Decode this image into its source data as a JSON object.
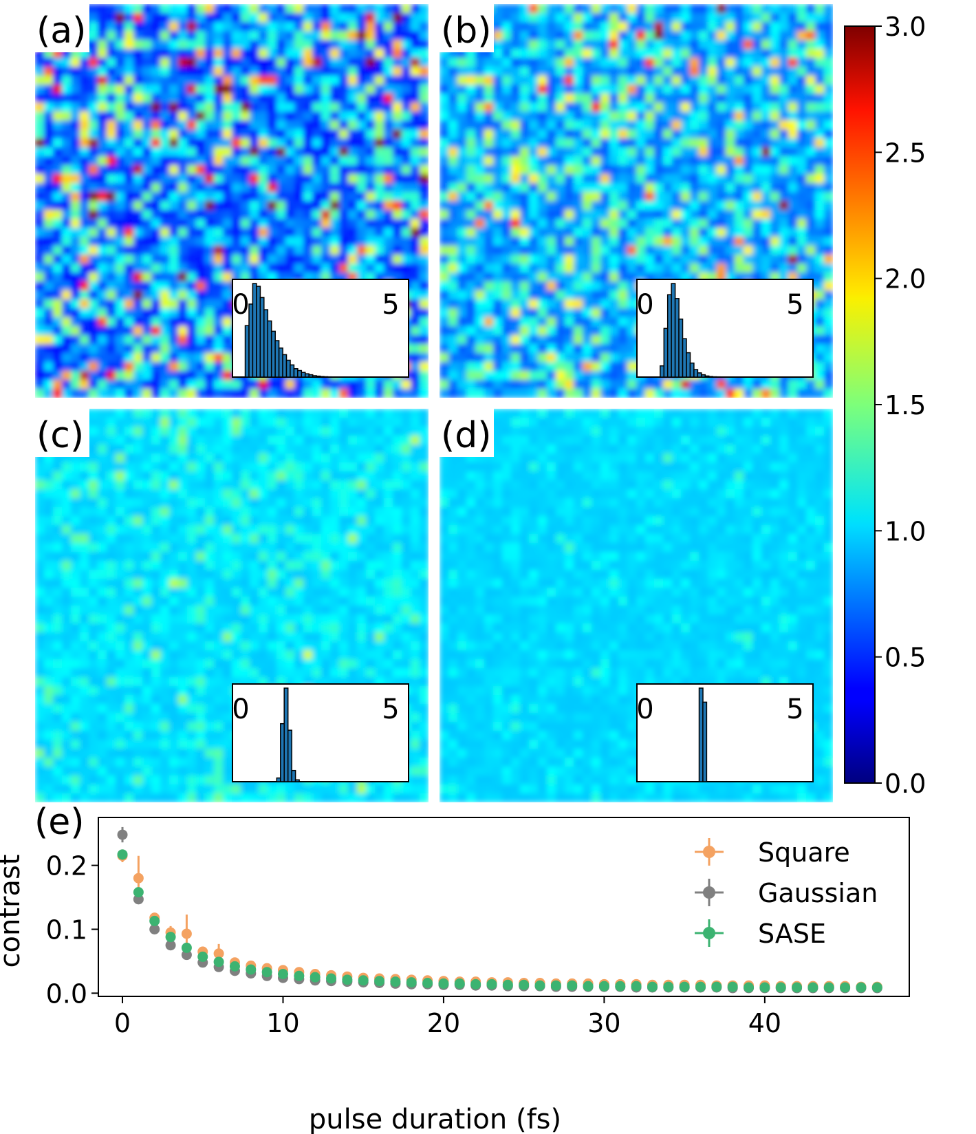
{
  "colors": {
    "square": "#f4a261",
    "gaussian": "#808080",
    "sase": "#3cb371",
    "hist_bar": "#1f77b4"
  },
  "colorbar": {
    "min": 0.0,
    "max": 3.0,
    "colormap": "jet",
    "ticks": [
      "0.0",
      "0.5",
      "1.0",
      "1.5",
      "2.0",
      "2.5",
      "3.0"
    ]
  },
  "panels": [
    {
      "label": "(a)",
      "inset_ticks": [
        "0",
        "5"
      ],
      "contrast_level": "high",
      "histogram": [
        0.55,
        0.78,
        1.0,
        0.97,
        0.85,
        0.72,
        0.6,
        0.49,
        0.39,
        0.31,
        0.24,
        0.18,
        0.13,
        0.09,
        0.07,
        0.05,
        0.035,
        0.025,
        0.015,
        0.01,
        0.006,
        0.004,
        0.002,
        0.001
      ]
    },
    {
      "label": "(b)",
      "inset_ticks": [
        "0",
        "5"
      ],
      "contrast_level": "medium",
      "histogram": [
        0.12,
        0.52,
        0.88,
        1.0,
        0.84,
        0.62,
        0.41,
        0.26,
        0.15,
        0.08,
        0.045,
        0.025,
        0.012,
        0.006,
        0.003,
        0.002,
        0.001
      ]
    },
    {
      "label": "(c)",
      "inset_ticks": [
        "0",
        "5"
      ],
      "contrast_level": "low",
      "histogram": [
        0.04,
        0.62,
        1.0,
        0.55,
        0.12,
        0.02
      ]
    },
    {
      "label": "(d)",
      "inset_ticks": [
        "0",
        "5"
      ],
      "contrast_level": "very-low",
      "histogram": [
        1.0,
        0.85
      ]
    }
  ],
  "chart_data": {
    "type": "scatter",
    "label": "(e)",
    "xlabel": "pulse duration (fs)",
    "ylabel": "contrast",
    "xlim": [
      -1.5,
      49
    ],
    "ylim": [
      -0.005,
      0.275
    ],
    "xticks": [
      0,
      10,
      20,
      30,
      40
    ],
    "yticks": [
      0.0,
      0.1,
      0.2
    ],
    "legend_position": "upper-right",
    "series": [
      {
        "name": "Square",
        "color": "#f4a261",
        "x": [
          0,
          1,
          2,
          3,
          4,
          5,
          6,
          7,
          8,
          9,
          10,
          11,
          12,
          13,
          14,
          15,
          16,
          17,
          18,
          19,
          20,
          21,
          22,
          23,
          24,
          25,
          26,
          27,
          28,
          29,
          30,
          31,
          32,
          33,
          34,
          35,
          36,
          37,
          38,
          39,
          40,
          41,
          42,
          43,
          44,
          45,
          46,
          47
        ],
        "y": [
          0.215,
          0.18,
          0.118,
          0.095,
          0.093,
          0.065,
          0.062,
          0.048,
          0.043,
          0.039,
          0.036,
          0.033,
          0.03,
          0.028,
          0.026,
          0.024,
          0.023,
          0.022,
          0.021,
          0.02,
          0.019,
          0.018,
          0.018,
          0.017,
          0.017,
          0.016,
          0.016,
          0.015,
          0.015,
          0.015,
          0.014,
          0.014,
          0.014,
          0.013,
          0.013,
          0.013,
          0.013,
          0.012,
          0.012,
          0.012,
          0.012,
          0.011,
          0.011,
          0.011,
          0.011,
          0.011,
          0.01,
          0.01
        ],
        "err": [
          0.01,
          0.035,
          0.008,
          0.01,
          0.03,
          0.008,
          0.015,
          0.004,
          0.003,
          0.003,
          0.002,
          0.002,
          0.002,
          0.002,
          0.002,
          0.001,
          0.001,
          0.001,
          0.001,
          0.001,
          0.001,
          0.001,
          0.001,
          0.001,
          0.001,
          0.001,
          0.001,
          0.001,
          0.001,
          0.001,
          0.001,
          0.001,
          0.001,
          0.001,
          0.001,
          0.001,
          0.001,
          0.001,
          0.001,
          0.001,
          0.001,
          0.001,
          0.001,
          0.001,
          0.001,
          0.001,
          0.001,
          0.001
        ]
      },
      {
        "name": "Gaussian",
        "color": "#808080",
        "x": [
          0,
          1,
          2,
          3,
          4,
          5,
          6,
          7,
          8,
          9,
          10,
          11,
          12,
          13,
          14,
          15,
          16,
          17,
          18,
          19,
          20,
          21,
          22,
          23,
          24,
          25,
          26,
          27,
          28,
          29,
          30,
          31,
          32,
          33,
          34,
          35,
          36,
          37,
          38,
          39,
          40,
          41,
          42,
          43,
          44,
          45,
          46,
          47
        ],
        "y": [
          0.248,
          0.147,
          0.1,
          0.075,
          0.06,
          0.048,
          0.041,
          0.035,
          0.031,
          0.027,
          0.024,
          0.022,
          0.02,
          0.019,
          0.018,
          0.017,
          0.016,
          0.015,
          0.014,
          0.014,
          0.013,
          0.013,
          0.012,
          0.012,
          0.011,
          0.011,
          0.011,
          0.01,
          0.01,
          0.01,
          0.01,
          0.01,
          0.009,
          0.009,
          0.009,
          0.009,
          0.009,
          0.009,
          0.008,
          0.008,
          0.008,
          0.008,
          0.008,
          0.008,
          0.008,
          0.008,
          0.008,
          0.008
        ],
        "err": [
          0.012,
          0.006,
          0.004,
          0.003,
          0.003,
          0.002,
          0.002,
          0.002,
          0.001,
          0.001,
          0.001,
          0.001,
          0.001,
          0.001,
          0.001,
          0.001,
          0.001,
          0.001,
          0.001,
          0.001,
          0.001,
          0.001,
          0.001,
          0.001,
          0.001,
          0.001,
          0.001,
          0.001,
          0.001,
          0.001,
          0.001,
          0.001,
          0.001,
          0.001,
          0.001,
          0.001,
          0.001,
          0.001,
          0.001,
          0.001,
          0.001,
          0.001,
          0.001,
          0.001,
          0.001,
          0.001,
          0.001,
          0.001
        ]
      },
      {
        "name": "SASE",
        "color": "#3cb371",
        "x": [
          0,
          1,
          2,
          3,
          4,
          5,
          6,
          7,
          8,
          9,
          10,
          11,
          12,
          13,
          14,
          15,
          16,
          17,
          18,
          19,
          20,
          21,
          22,
          23,
          24,
          25,
          26,
          27,
          28,
          29,
          30,
          31,
          32,
          33,
          34,
          35,
          36,
          37,
          38,
          39,
          40,
          41,
          42,
          43,
          44,
          45,
          46,
          47
        ],
        "y": [
          0.217,
          0.158,
          0.113,
          0.088,
          0.071,
          0.057,
          0.049,
          0.042,
          0.037,
          0.033,
          0.03,
          0.027,
          0.025,
          0.023,
          0.021,
          0.02,
          0.019,
          0.018,
          0.017,
          0.016,
          0.015,
          0.015,
          0.014,
          0.014,
          0.013,
          0.013,
          0.012,
          0.012,
          0.012,
          0.011,
          0.011,
          0.011,
          0.011,
          0.01,
          0.01,
          0.01,
          0.01,
          0.01,
          0.01,
          0.009,
          0.009,
          0.009,
          0.009,
          0.009,
          0.009,
          0.009,
          0.009,
          0.009
        ],
        "err": [
          0.008,
          0.006,
          0.004,
          0.003,
          0.002,
          0.002,
          0.002,
          0.002,
          0.001,
          0.001,
          0.001,
          0.001,
          0.001,
          0.001,
          0.001,
          0.001,
          0.001,
          0.001,
          0.001,
          0.001,
          0.001,
          0.001,
          0.001,
          0.001,
          0.001,
          0.001,
          0.001,
          0.001,
          0.001,
          0.001,
          0.001,
          0.001,
          0.001,
          0.001,
          0.001,
          0.001,
          0.001,
          0.001,
          0.001,
          0.001,
          0.001,
          0.001,
          0.001,
          0.001,
          0.001,
          0.001,
          0.001,
          0.001
        ]
      }
    ]
  }
}
